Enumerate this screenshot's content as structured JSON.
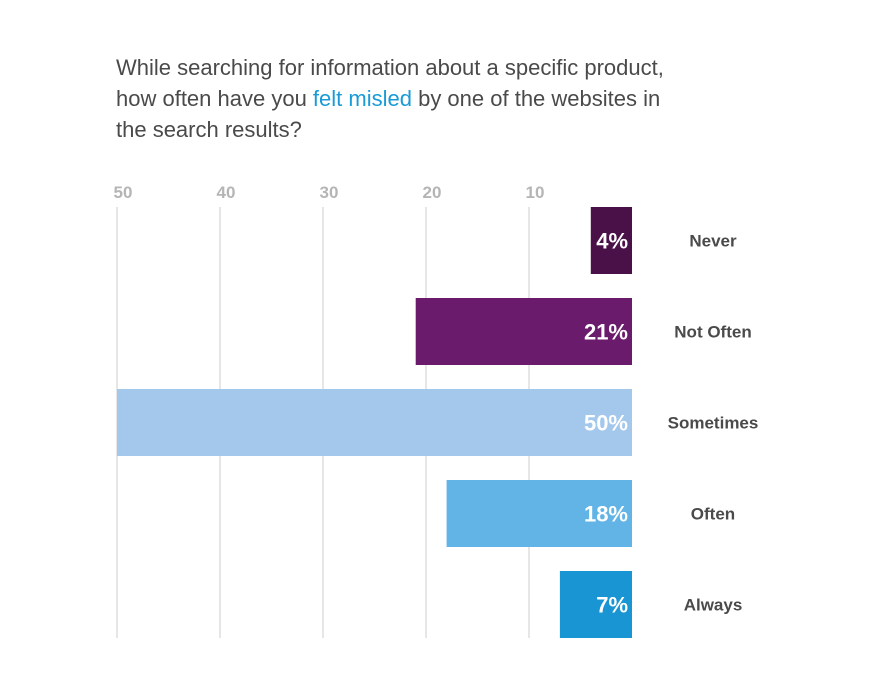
{
  "title": {
    "before": "While searching for information about a specific product, how often have you ",
    "highlight": "felt misled",
    "after": " by one of the websites in the search results?"
  },
  "colors": {
    "title_text": "#4a4a4a",
    "highlight": "#1a9ad6",
    "tick_text": "#b5b5b5",
    "grid": "#e6e6e6",
    "category_text": "#4a4a4a",
    "bar_label": "#ffffff"
  },
  "chart_data": {
    "type": "bar",
    "orientation": "horizontal",
    "x_direction": "right-to-left",
    "categories": [
      "Never",
      "Not Often",
      "Sometimes",
      "Often",
      "Always"
    ],
    "values": [
      4,
      21,
      50,
      18,
      7
    ],
    "value_labels": [
      "4%",
      "21%",
      "50%",
      "18%",
      "7%"
    ],
    "bar_colors": [
      "#4a1048",
      "#6b1b6b",
      "#a3c8eb",
      "#62b4e6",
      "#1a95d4"
    ],
    "x_ticks": [
      50,
      40,
      30,
      20,
      10
    ],
    "xlim": [
      0,
      50
    ],
    "grid": true,
    "xlabel": "",
    "ylabel": ""
  }
}
